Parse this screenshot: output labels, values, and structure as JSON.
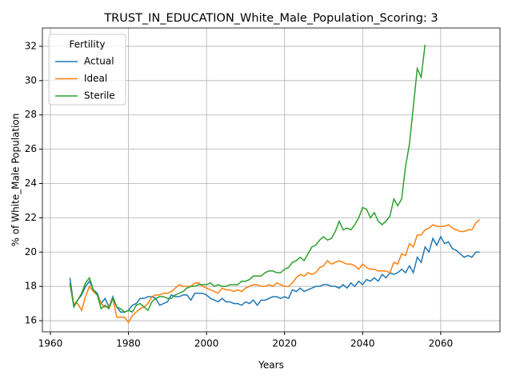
{
  "chart_data": {
    "type": "line",
    "title": "TRUST_IN_EDUCATION_White_Male_Population_Scoring: 3",
    "x_label": "Years",
    "y_label": "% of White_Male Population",
    "legend_title": "Fertility",
    "legend_loc": "upper left",
    "grid": true,
    "xlim": [
      1957.95,
      2075.2
    ],
    "ylim": [
      15.35,
      33.07
    ],
    "xticks": [
      1960,
      1980,
      2000,
      2020,
      2040,
      2060
    ],
    "yticks": [
      16,
      18,
      20,
      22,
      24,
      26,
      28,
      30,
      32
    ],
    "x": [
      1965,
      1966,
      1967,
      1968,
      1969,
      1970,
      1971,
      1972,
      1973,
      1974,
      1975,
      1976,
      1977,
      1978,
      1979,
      1980,
      1981,
      1982,
      1983,
      1984,
      1985,
      1986,
      1987,
      1988,
      1989,
      1990,
      1991,
      1992,
      1993,
      1994,
      1995,
      1996,
      1997,
      1998,
      1999,
      2000,
      2001,
      2002,
      2003,
      2004,
      2005,
      2006,
      2007,
      2008,
      2009,
      2010,
      2011,
      2012,
      2013,
      2014,
      2015,
      2016,
      2017,
      2018,
      2019,
      2020,
      2021,
      2022,
      2023,
      2024,
      2025,
      2026,
      2027,
      2028,
      2029,
      2030,
      2031,
      2032,
      2033,
      2034,
      2035,
      2036,
      2037,
      2038,
      2039,
      2040,
      2041,
      2042,
      2043,
      2044,
      2045,
      2046,
      2047,
      2048,
      2049,
      2050,
      2051,
      2052,
      2053,
      2054,
      2055,
      2056,
      2057,
      2058,
      2059,
      2060,
      2061,
      2062,
      2063,
      2064,
      2065,
      2066,
      2067,
      2068,
      2069,
      2070
    ],
    "series": [
      {
        "name": "Actual",
        "color": "#1f77b4",
        "values": [
          18.5,
          16.9,
          17.2,
          17.5,
          18.0,
          18.3,
          17.8,
          17.6,
          17.0,
          17.3,
          16.8,
          17.4,
          16.8,
          16.5,
          16.5,
          16.6,
          16.9,
          17.0,
          17.3,
          17.3,
          17.4,
          17.4,
          17.3,
          16.9,
          17.0,
          17.1,
          17.5,
          17.4,
          17.4,
          17.5,
          17.5,
          17.2,
          17.6,
          17.6,
          17.6,
          17.5,
          17.3,
          17.2,
          17.1,
          17.3,
          17.1,
          17.1,
          17.0,
          17.0,
          16.9,
          17.1,
          17.0,
          17.2,
          16.9,
          17.2,
          17.2,
          17.3,
          17.4,
          17.4,
          17.3,
          17.4,
          17.3,
          17.8,
          17.7,
          17.9,
          17.7,
          17.8,
          17.9,
          18.0,
          18.0,
          18.1,
          18.1,
          18.0,
          18.0,
          17.9,
          18.1,
          17.9,
          18.2,
          18.0,
          18.3,
          18.1,
          18.4,
          18.3,
          18.5,
          18.3,
          18.7,
          18.5,
          18.8,
          18.7,
          18.8,
          19.0,
          18.8,
          19.2,
          18.8,
          19.7,
          19.4,
          20.3,
          20.0,
          20.8,
          20.4,
          20.9,
          20.5,
          20.6,
          20.2,
          20.1,
          19.9,
          19.7,
          19.8,
          19.7,
          20.0,
          20.0
        ]
      },
      {
        "name": "Ideal",
        "color": "#ff7f0e",
        "values": [
          18.1,
          17.0,
          17.0,
          16.6,
          17.4,
          18.0,
          17.7,
          17.5,
          17.0,
          16.8,
          16.8,
          17.3,
          16.2,
          16.2,
          16.2,
          15.9,
          16.3,
          16.5,
          16.7,
          16.8,
          17.0,
          17.4,
          17.5,
          17.5,
          17.6,
          17.6,
          17.7,
          17.9,
          18.1,
          18.0,
          18.0,
          18.0,
          18.2,
          18.2,
          18.0,
          17.9,
          17.8,
          17.7,
          17.6,
          17.9,
          17.8,
          17.8,
          17.7,
          17.8,
          17.7,
          17.9,
          18.0,
          18.1,
          18.1,
          18.0,
          18.0,
          18.1,
          18.0,
          18.2,
          18.1,
          18.0,
          18.0,
          18.2,
          18.5,
          18.7,
          18.6,
          18.8,
          18.7,
          18.8,
          19.1,
          19.2,
          19.5,
          19.3,
          19.4,
          19.5,
          19.4,
          19.3,
          19.3,
          19.2,
          19.0,
          19.3,
          19.1,
          19.0,
          19.0,
          18.9,
          18.9,
          18.9,
          18.8,
          19.4,
          19.3,
          19.9,
          19.8,
          20.5,
          20.3,
          21.0,
          21.0,
          21.3,
          21.4,
          21.6,
          21.5,
          21.5,
          21.5,
          21.6,
          21.4,
          21.3,
          21.2,
          21.2,
          21.3,
          21.3,
          21.7,
          21.9
        ]
      },
      {
        "name": "Sterile",
        "color": "#2ca02c",
        "values": [
          18.2,
          16.8,
          17.2,
          17.6,
          18.2,
          18.5,
          17.8,
          17.5,
          16.7,
          16.9,
          16.7,
          17.3,
          16.8,
          16.7,
          16.5,
          16.6,
          16.5,
          16.9,
          17.0,
          16.8,
          16.6,
          17.1,
          17.3,
          17.4,
          17.4,
          17.3,
          17.3,
          17.5,
          17.6,
          17.7,
          17.9,
          18.0,
          18.0,
          18.1,
          18.1,
          18.1,
          18.2,
          18.0,
          18.1,
          18.0,
          18.0,
          18.1,
          18.1,
          18.1,
          18.3,
          18.3,
          18.4,
          18.6,
          18.6,
          18.6,
          18.8,
          18.9,
          18.9,
          18.8,
          18.8,
          19.0,
          19.1,
          19.4,
          19.5,
          19.7,
          19.5,
          19.9,
          20.3,
          20.4,
          20.7,
          20.9,
          20.7,
          20.8,
          21.2,
          21.8,
          21.3,
          21.4,
          21.3,
          21.6,
          22.0,
          22.6,
          22.5,
          22.0,
          22.3,
          21.8,
          21.6,
          21.8,
          22.1,
          23.1,
          22.7,
          23.1,
          25.0,
          26.3,
          28.5,
          30.7,
          30.2,
          32.1,
          null,
          null,
          null,
          null,
          null,
          null,
          null,
          null,
          null,
          null,
          null,
          null,
          null,
          null
        ]
      }
    ]
  }
}
